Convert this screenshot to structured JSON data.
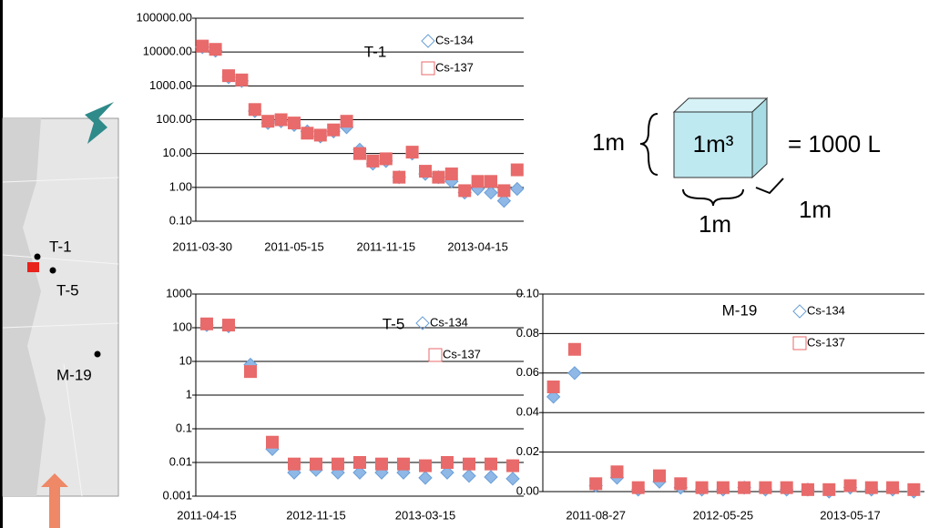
{
  "chart_data": [
    {
      "type": "scatter",
      "title": "T-1",
      "log_y": true,
      "grid": true,
      "categories": [
        "2011-03-30",
        null,
        null,
        null,
        null,
        null,
        null,
        "2011-05-15",
        null,
        null,
        null,
        null,
        null,
        null,
        "2011-11-15",
        null,
        null,
        null,
        null,
        null,
        null,
        "2013-04-15",
        null,
        null,
        null
      ],
      "series": [
        {
          "name": "Cs-134",
          "color": "#6a9fd8",
          "marker": "diamond",
          "values": [
            14000,
            11000,
            1800,
            1400,
            180,
            80,
            90,
            70,
            45,
            32,
            45,
            60,
            13,
            5,
            6,
            2,
            10,
            2.5,
            2,
            1.5,
            0.7,
            0.9,
            0.7,
            0.4,
            0.9
          ]
        },
        {
          "name": "Cs-137",
          "color": "#e86a6a",
          "marker": "square",
          "values": [
            15000,
            12000,
            2000,
            1500,
            200,
            90,
            100,
            80,
            40,
            35,
            50,
            90,
            10,
            6,
            7,
            2,
            11,
            3,
            2,
            2.5,
            0.8,
            1.5,
            1.5,
            0.8,
            3.3
          ]
        }
      ],
      "ylim": [
        0.1,
        100000
      ],
      "yticks": [
        {
          "value": 0.1,
          "label": "0.10"
        },
        {
          "value": 1,
          "label": "1.00"
        },
        {
          "value": 10,
          "label": "10.00"
        },
        {
          "value": 100,
          "label": "100.00"
        },
        {
          "value": 1000,
          "label": "1000.00"
        },
        {
          "value": 10000,
          "label": "10000.00"
        },
        {
          "value": 100000,
          "label": "100000.00"
        }
      ]
    },
    {
      "type": "scatter",
      "title": "T-5",
      "log_y": true,
      "grid": true,
      "categories": [
        "2011-04-15",
        null,
        null,
        null,
        null,
        "2012-11-15",
        null,
        null,
        null,
        null,
        "2013-03-15",
        null,
        null,
        null,
        null
      ],
      "series": [
        {
          "name": "Cs-134",
          "color": "#6a9fd8",
          "marker": "diamond",
          "values": [
            120,
            110,
            8,
            0.025,
            0.005,
            0.006,
            0.005,
            0.005,
            0.005,
            0.005,
            0.0035,
            0.005,
            0.004,
            0.0037,
            0.0033
          ]
        },
        {
          "name": "Cs-137",
          "color": "#e86a6a",
          "marker": "square",
          "values": [
            130,
            120,
            5,
            0.04,
            0.009,
            0.009,
            0.009,
            0.01,
            0.009,
            0.009,
            0.008,
            0.01,
            0.009,
            0.009,
            0.008
          ]
        }
      ],
      "ylim": [
        0.001,
        1000
      ],
      "yticks": [
        0.001,
        0.01,
        0.1,
        1,
        10,
        100,
        1000
      ]
    },
    {
      "type": "scatter",
      "title": "M-19",
      "log_y": false,
      "grid": true,
      "categories": [
        null,
        null,
        "2011-08-27",
        null,
        null,
        null,
        null,
        null,
        "2012-05-25",
        null,
        null,
        null,
        null,
        null,
        "2013-05-17",
        null,
        null,
        null
      ],
      "series": [
        {
          "name": "Cs-134",
          "color": "#6a9fd8",
          "marker": "diamond",
          "values": [
            0.048,
            0.06,
            0.003,
            0.007,
            0.001,
            0.005,
            0.002,
            0.001,
            0.001,
            0.002,
            0.001,
            0.001,
            0.001,
            0.0,
            0.002,
            0.001,
            0.001,
            0.0
          ]
        },
        {
          "name": "Cs-137",
          "color": "#e86a6a",
          "marker": "square",
          "values": [
            0.053,
            0.072,
            0.004,
            0.01,
            0.002,
            0.008,
            0.004,
            0.002,
            0.002,
            0.002,
            0.002,
            0.002,
            0.001,
            0.001,
            0.003,
            0.002,
            0.002,
            0.001
          ]
        }
      ],
      "ylim": [
        0,
        0.1
      ],
      "yticks": [
        {
          "value": 0,
          "label": "0.00"
        },
        {
          "value": 0.02,
          "label": "0.02"
        },
        {
          "value": 0.04,
          "label": "0.04"
        },
        {
          "value": 0.06,
          "label": "0.06"
        },
        {
          "value": 0.08,
          "label": "0.08"
        },
        {
          "value": 0.1,
          "label": "0.10"
        }
      ]
    }
  ],
  "map": {
    "labels": [
      "T-1",
      "T-5",
      "M-19"
    ]
  },
  "diagram": {
    "height": "1m",
    "cube": "1m³",
    "volume": "= 1000 L",
    "depth": "1m",
    "width": "1m"
  }
}
